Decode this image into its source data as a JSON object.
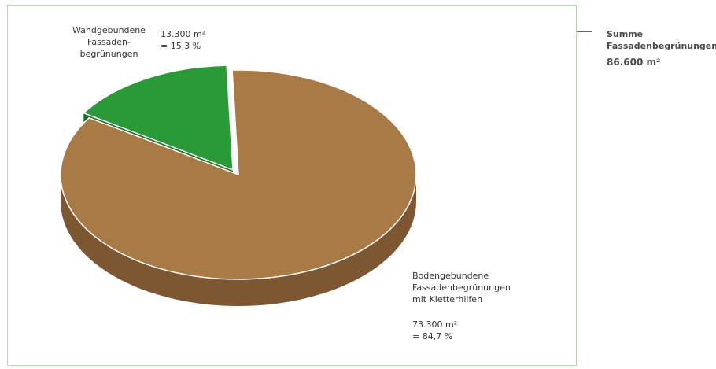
{
  "chart_data": {
    "type": "pie",
    "style": "3d-exploded",
    "slices": [
      {
        "label": "Bodengebundene\nFassadenbegrünungen\nmit Kletterhilfen",
        "value_text": "73.300 m²\n= 84,7 %",
        "area_m2": 73300,
        "percent": 84.7,
        "color": "#a87a46",
        "side_color": "#7d5732"
      },
      {
        "label": "Wandgebundene\nFassaden-\nbegrünungen",
        "value_text": "13.300 m²\n= 15,3 %",
        "area_m2": 13300,
        "percent": 15.3,
        "color": "#2a9a38",
        "side_color": "#177025"
      }
    ],
    "total": {
      "label": "Summe\nFassadenbegrünungen",
      "value": "86.600 m²"
    }
  },
  "colors": {
    "frame_border": "#b7d7b1",
    "connector": "#666666"
  }
}
